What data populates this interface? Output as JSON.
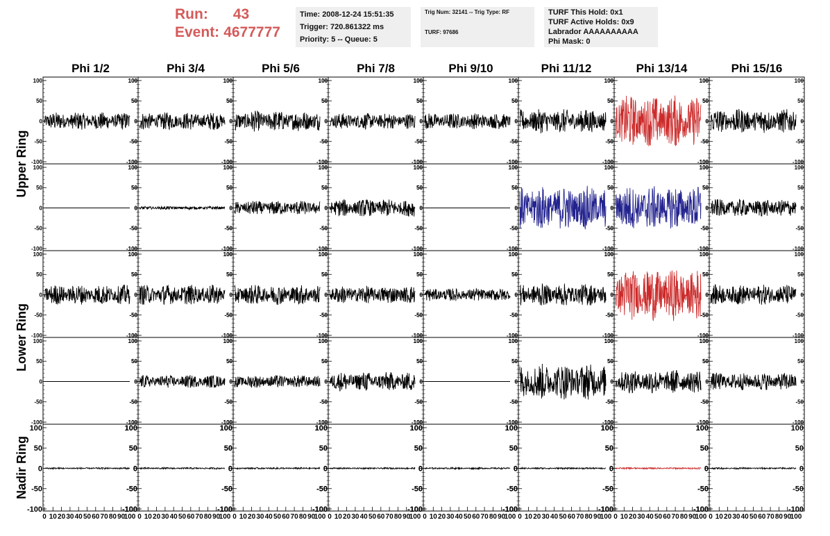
{
  "header": {
    "run_label": "Run:",
    "run_value": "43",
    "event_label": "Event:",
    "event_value": "4677777",
    "time_info": [
      "Time: 2008-12-24 15:51:35",
      "Trigger: 720.861322 ms",
      "Priority: 5 -- Queue: 5"
    ],
    "trig_info": [
      "Trig Num: 32141 -- Trig Type: RF",
      "TURF: 97686"
    ],
    "turf_info": [
      "TURF This Hold: 0x1",
      "TURF Active Holds: 0x9",
      "Labrador AAAAAAAAAA",
      "Phi Mask: 0"
    ]
  },
  "colors": {
    "normal": "#000000",
    "triggered_red": "#cc2a2a",
    "triggered_blue": "#23238f",
    "header_red": "#d45a5a"
  },
  "chart_data": {
    "type": "line",
    "columns": [
      "Phi 1/2",
      "Phi 3/4",
      "Phi 5/6",
      "Phi 7/8",
      "Phi 9/10",
      "Phi 11/12",
      "Phi 13/14",
      "Phi 15/16"
    ],
    "ring_labels": [
      "Upper Ring",
      "Lower Ring",
      "Nadir Ring"
    ],
    "ylim": [
      -100,
      100
    ],
    "xlim": [
      0,
      100
    ],
    "y_ticks": [
      100,
      50,
      0,
      -50,
      -100
    ],
    "y_tick_labels": [
      "100",
      "50",
      "0",
      "-50",
      "-100"
    ],
    "x_tick_labels": [
      "0",
      "10",
      "20",
      "30",
      "40",
      "50",
      "60",
      "70",
      "80",
      "90",
      "100"
    ],
    "panels": [
      {
        "row": 0,
        "col": 0,
        "amp": 22,
        "color": "normal"
      },
      {
        "row": 0,
        "col": 1,
        "amp": 22,
        "color": "normal"
      },
      {
        "row": 0,
        "col": 2,
        "amp": 26,
        "color": "normal"
      },
      {
        "row": 0,
        "col": 3,
        "amp": 20,
        "color": "normal"
      },
      {
        "row": 0,
        "col": 4,
        "amp": 20,
        "color": "normal"
      },
      {
        "row": 0,
        "col": 5,
        "amp": 30,
        "color": "normal"
      },
      {
        "row": 0,
        "col": 6,
        "amp": 65,
        "color": "triggered_red"
      },
      {
        "row": 0,
        "col": 7,
        "amp": 30,
        "color": "normal"
      },
      {
        "row": 1,
        "col": 0,
        "amp": 0,
        "color": "normal"
      },
      {
        "row": 1,
        "col": 1,
        "amp": 4,
        "color": "normal"
      },
      {
        "row": 1,
        "col": 2,
        "amp": 18,
        "color": "normal"
      },
      {
        "row": 1,
        "col": 3,
        "amp": 22,
        "color": "normal"
      },
      {
        "row": 1,
        "col": 4,
        "amp": 0,
        "color": "normal"
      },
      {
        "row": 1,
        "col": 5,
        "amp": 55,
        "color": "triggered_blue"
      },
      {
        "row": 1,
        "col": 6,
        "amp": 55,
        "color": "triggered_blue"
      },
      {
        "row": 1,
        "col": 7,
        "amp": 22,
        "color": "normal"
      },
      {
        "row": 2,
        "col": 0,
        "amp": 25,
        "color": "normal"
      },
      {
        "row": 2,
        "col": 1,
        "amp": 25,
        "color": "normal"
      },
      {
        "row": 2,
        "col": 2,
        "amp": 25,
        "color": "normal"
      },
      {
        "row": 2,
        "col": 3,
        "amp": 22,
        "color": "normal"
      },
      {
        "row": 2,
        "col": 4,
        "amp": 16,
        "color": "normal"
      },
      {
        "row": 2,
        "col": 5,
        "amp": 28,
        "color": "normal"
      },
      {
        "row": 2,
        "col": 6,
        "amp": 65,
        "color": "triggered_red"
      },
      {
        "row": 2,
        "col": 7,
        "amp": 25,
        "color": "normal"
      },
      {
        "row": 3,
        "col": 0,
        "amp": 0,
        "color": "normal"
      },
      {
        "row": 3,
        "col": 1,
        "amp": 16,
        "color": "normal"
      },
      {
        "row": 3,
        "col": 2,
        "amp": 16,
        "color": "normal"
      },
      {
        "row": 3,
        "col": 3,
        "amp": 24,
        "color": "normal"
      },
      {
        "row": 3,
        "col": 4,
        "amp": 0,
        "color": "normal"
      },
      {
        "row": 3,
        "col": 5,
        "amp": 45,
        "color": "normal"
      },
      {
        "row": 3,
        "col": 6,
        "amp": 30,
        "color": "normal"
      },
      {
        "row": 3,
        "col": 7,
        "amp": 22,
        "color": "normal"
      },
      {
        "row": 4,
        "col": 0,
        "amp": 2,
        "color": "normal"
      },
      {
        "row": 4,
        "col": 1,
        "amp": 2,
        "color": "normal"
      },
      {
        "row": 4,
        "col": 2,
        "amp": 2,
        "color": "normal"
      },
      {
        "row": 4,
        "col": 3,
        "amp": 2,
        "color": "normal"
      },
      {
        "row": 4,
        "col": 4,
        "amp": 2,
        "color": "normal"
      },
      {
        "row": 4,
        "col": 5,
        "amp": 2,
        "color": "normal"
      },
      {
        "row": 4,
        "col": 6,
        "amp": 2,
        "color": "triggered_red"
      },
      {
        "row": 4,
        "col": 7,
        "amp": 2,
        "color": "normal"
      }
    ]
  }
}
